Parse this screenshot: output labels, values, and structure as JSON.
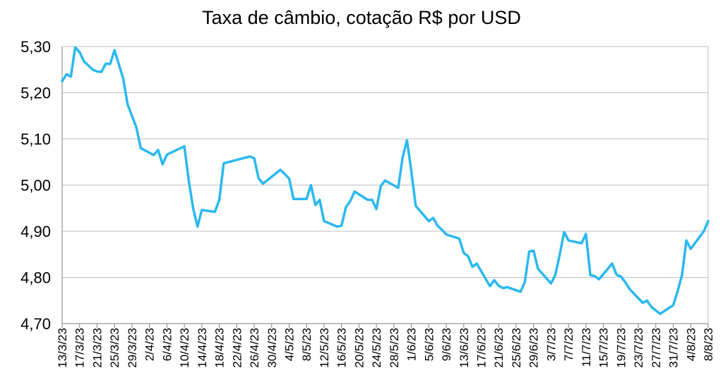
{
  "chart_data": {
    "type": "line",
    "title": "Taxa de câmbio, cotação R$ por USD",
    "xlabel": "",
    "ylabel": "",
    "ylim": [
      4.7,
      5.3
    ],
    "yticks": [
      "4,70",
      "4,80",
      "4,90",
      "5,00",
      "5,10",
      "5,20",
      "5,30"
    ],
    "ytick_values": [
      4.7,
      4.8,
      4.9,
      5.0,
      5.1,
      5.2,
      5.3
    ],
    "xticks": [
      "13/3/23",
      "17/3/23",
      "21/3/23",
      "25/3/23",
      "29/3/23",
      "2/4/23",
      "6/4/23",
      "10/4/23",
      "14/4/23",
      "18/4/23",
      "22/4/23",
      "26/4/23",
      "30/4/23",
      "4/5/23",
      "8/5/23",
      "12/5/23",
      "16/5/23",
      "20/5/23",
      "24/5/23",
      "28/5/23",
      "1/6/23",
      "5/6/23",
      "9/6/23",
      "13/6/23",
      "17/6/23",
      "21/6/23",
      "25/6/23",
      "29/6/23",
      "3/7/23",
      "7/7/23",
      "11/7/23",
      "15/7/23",
      "19/7/23",
      "23/7/23",
      "27/7/23",
      "31/7/23",
      "4/8/23",
      "8/8/23"
    ],
    "x_start": "13/3/23",
    "x_end": "8/8/23",
    "grid": "horizontal",
    "line_color": "#2bb8f0",
    "series": [
      {
        "x": [
          "13/3/23",
          "14/3/23",
          "15/3/23",
          "16/3/23",
          "17/3/23",
          "18/3/23",
          "20/3/23",
          "21/3/23",
          "22/3/23",
          "23/3/23",
          "24/3/23",
          "25/3/23",
          "27/3/23",
          "28/3/23",
          "29/3/23",
          "30/3/23",
          "31/3/23",
          "3/4/23",
          "4/4/23",
          "5/4/23",
          "6/4/23",
          "10/4/23",
          "11/4/23",
          "12/4/23",
          "13/4/23",
          "14/4/23",
          "17/4/23",
          "18/4/23",
          "19/4/23",
          "25/4/23",
          "26/4/23",
          "27/4/23",
          "28/4/23",
          "2/5/23",
          "3/5/23",
          "4/5/23",
          "5/5/23",
          "6/5/23",
          "8/5/23",
          "9/5/23",
          "10/5/23",
          "11/5/23",
          "12/5/23",
          "15/5/23",
          "16/5/23",
          "17/5/23",
          "18/5/23",
          "19/5/23",
          "22/5/23",
          "23/5/23",
          "24/5/23",
          "25/5/23",
          "26/5/23",
          "29/5/23",
          "30/5/23",
          "31/5/23",
          "1/6/23",
          "2/6/23",
          "5/6/23",
          "6/6/23",
          "7/6/23",
          "8/6/23",
          "9/6/23",
          "12/6/23",
          "13/6/23",
          "14/6/23",
          "15/6/23",
          "16/6/23",
          "19/6/23",
          "20/6/23",
          "21/6/23",
          "22/6/23",
          "23/6/23",
          "26/6/23",
          "27/6/23",
          "28/6/23",
          "29/6/23",
          "30/6/23",
          "3/7/23",
          "4/7/23",
          "5/7/23",
          "6/7/23",
          "7/7/23",
          "10/7/23",
          "11/7/23",
          "12/7/23",
          "13/7/23",
          "14/7/23",
          "17/7/23",
          "18/7/23",
          "19/7/23",
          "20/7/23",
          "21/7/23",
          "24/7/23",
          "25/7/23",
          "26/7/23",
          "28/7/23",
          "31/7/23",
          "1/8/23",
          "2/8/23",
          "3/8/23",
          "4/8/23",
          "7/8/23",
          "8/8/23"
        ],
        "values": [
          5.225,
          5.24,
          5.235,
          5.298,
          5.288,
          5.268,
          5.25,
          5.246,
          5.245,
          5.263,
          5.262,
          5.292,
          5.23,
          5.175,
          5.15,
          5.125,
          5.08,
          5.065,
          5.076,
          5.045,
          5.066,
          5.084,
          5.01,
          4.95,
          4.91,
          4.946,
          4.942,
          4.968,
          5.047,
          5.062,
          5.058,
          5.015,
          5.003,
          5.033,
          5.024,
          5.014,
          4.97,
          4.97,
          4.97,
          5.0,
          4.957,
          4.968,
          4.922,
          4.91,
          4.912,
          4.952,
          4.965,
          4.986,
          4.968,
          4.968,
          4.948,
          4.998,
          5.01,
          4.994,
          5.06,
          5.097,
          5.03,
          4.955,
          4.922,
          4.929,
          4.912,
          4.903,
          4.893,
          4.884,
          4.853,
          4.846,
          4.823,
          4.83,
          4.781,
          4.794,
          4.782,
          4.777,
          4.779,
          4.769,
          4.79,
          4.856,
          4.858,
          4.819,
          4.787,
          4.806,
          4.85,
          4.898,
          4.88,
          4.874,
          4.894,
          4.805,
          4.803,
          4.796,
          4.83,
          4.806,
          4.802,
          4.79,
          4.775,
          4.745,
          4.75,
          4.736,
          4.721,
          4.74,
          4.77,
          4.805,
          4.88,
          4.862,
          4.9,
          4.922
        ]
      }
    ]
  }
}
